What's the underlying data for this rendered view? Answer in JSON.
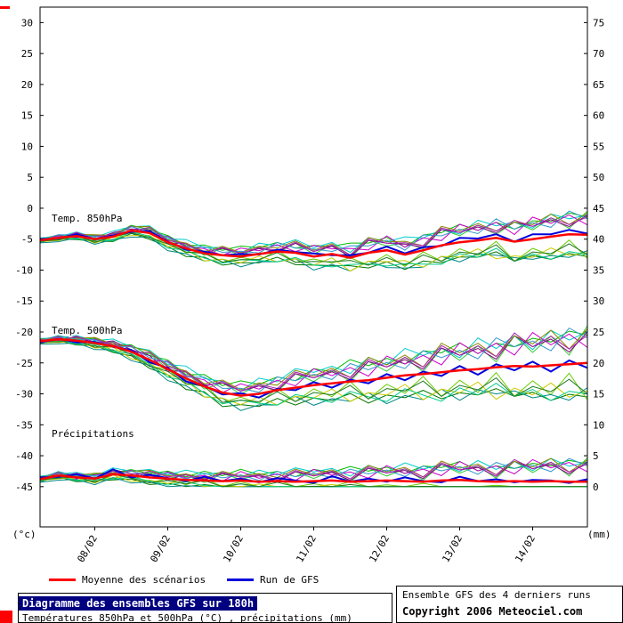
{
  "legend": {
    "mean_label": "Moyenne des scénarios",
    "run_label": "Run de GFS",
    "mean_color": "#ff0000",
    "run_color": "#0000dd"
  },
  "footer": {
    "left_title": "Diagramme des ensembles GFS sur 180h",
    "left_subtitle": "Températures 850hPa et 500hPa (°C) , précipitations (mm)",
    "right_line1": "Ensemble GFS des 4 derniers runs",
    "right_line2": "Copyright 2006 Meteociel.com",
    "title_bg": "#000080"
  },
  "chart_data": {
    "type": "line",
    "title": "Diagramme des ensembles GFS sur 180h",
    "hours_total": 180,
    "step_hours": 6,
    "x_tick_hours": [
      18,
      42,
      66,
      90,
      114,
      138,
      162
    ],
    "x_tick_labels": [
      "08/02",
      "09/02",
      "10/02",
      "11/02",
      "12/02",
      "13/02",
      "14/02"
    ],
    "y_left": {
      "unit": "(°c)",
      "ticks": [
        30,
        25,
        20,
        15,
        10,
        5,
        0,
        -5,
        -10,
        -15,
        -20,
        -25,
        -30,
        -35,
        -40,
        -45
      ]
    },
    "y_right": {
      "unit": "(mm)",
      "ticks": [
        75,
        70,
        65,
        60,
        55,
        50,
        45,
        40,
        35,
        30,
        25,
        20,
        15,
        10,
        5,
        0
      ]
    },
    "grid": false,
    "legend_position": "bottom",
    "mean_color": "#ff0000",
    "run_color": "#0000dd",
    "member_colors": [
      "#00bb00",
      "#007700",
      "#33cc33",
      "#66cc00",
      "#00cccc",
      "#008888",
      "#cc00cc",
      "#880088",
      "#cccc00",
      "#888800",
      "#00cc88",
      "#3399cc",
      "#227722",
      "#aa22aa"
    ],
    "member_patterns": [
      [
        0.3,
        0.5,
        0.1,
        0.6,
        0.2,
        0.7,
        0.4,
        0.8,
        0.3,
        0.9,
        0.5,
        1.0,
        0.6,
        0.8,
        0.4,
        0.9,
        0.6,
        1.1,
        0.7,
        0.9,
        0.5,
        1.0,
        0.8,
        1.1,
        0.6,
        0.9,
        0.7,
        1.0,
        0.8,
        1.1,
        0.9
      ],
      [
        -0.4,
        -0.2,
        -0.6,
        -0.3,
        -0.7,
        -0.4,
        -0.8,
        -0.5,
        -0.9,
        -0.4,
        -1.0,
        -0.6,
        -0.8,
        -0.5,
        -1.0,
        -0.7,
        -0.9,
        -0.6,
        -1.1,
        -0.8,
        -1.0,
        -0.7,
        -1.1,
        -0.9,
        -1.0,
        -0.8,
        -1.1,
        -0.9,
        -1.2,
        -1.0,
        -1.1
      ],
      [
        0.1,
        -0.3,
        0.4,
        -0.2,
        0.5,
        -0.1,
        0.6,
        0.0,
        0.5,
        -0.2,
        0.7,
        0.1,
        0.6,
        -0.1,
        0.8,
        0.2,
        0.7,
        0.0,
        0.9,
        0.3,
        0.8,
        0.1,
        1.0,
        0.4,
        0.9,
        0.2,
        1.1,
        0.5,
        1.0,
        0.3,
        1.2
      ],
      [
        -0.1,
        0.3,
        -0.4,
        0.2,
        -0.5,
        0.1,
        -0.6,
        0.0,
        -0.5,
        0.2,
        -0.7,
        -0.1,
        -0.6,
        0.1,
        -0.8,
        -0.2,
        -0.7,
        0.0,
        -0.9,
        -0.3,
        -0.8,
        -0.1,
        -1.0,
        -0.4,
        -0.9,
        -0.2,
        -1.1,
        -0.5,
        -1.0,
        -0.3,
        -1.2
      ],
      [
        0.5,
        0.2,
        0.7,
        0.3,
        0.8,
        0.5,
        0.9,
        0.4,
        1.0,
        0.6,
        0.8,
        0.3,
        1.0,
        0.5,
        1.1,
        0.7,
        0.9,
        0.4,
        1.1,
        0.6,
        1.2,
        0.8,
        1.0,
        0.5,
        1.2,
        0.7,
        1.1,
        0.6,
        1.2,
        0.8,
        1.0
      ],
      [
        -0.5,
        -0.7,
        -0.3,
        -0.8,
        -0.4,
        -0.9,
        -0.5,
        -1.0,
        -0.6,
        -0.8,
        -0.4,
        -1.0,
        -0.7,
        -0.9,
        -0.5,
        -1.1,
        -0.8,
        -1.0,
        -0.6,
        -1.2,
        -0.9,
        -1.1,
        -0.7,
        -1.2,
        -0.8,
        -1.0,
        -0.9,
        -1.1,
        -1.0,
        -1.2,
        -0.8
      ],
      [
        0.0,
        0.4,
        -0.2,
        0.5,
        0.1,
        0.6,
        -0.1,
        0.7,
        0.2,
        0.5,
        0.0,
        0.8,
        0.3,
        0.6,
        0.1,
        0.9,
        0.4,
        0.7,
        0.2,
        1.0,
        0.5,
        0.8,
        0.3,
        1.1,
        0.6,
        0.9,
        0.4,
        1.2,
        0.7,
        1.0,
        0.5
      ],
      [
        0.2,
        -0.1,
        0.5,
        0.0,
        0.6,
        0.2,
        0.4,
        -0.2,
        0.6,
        0.1,
        0.7,
        0.3,
        0.5,
        0.0,
        0.8,
        0.4,
        0.6,
        0.1,
        0.9,
        0.5,
        0.7,
        0.2,
        1.0,
        0.6,
        0.8,
        0.3,
        1.1,
        0.7,
        0.9,
        0.4,
        1.0
      ],
      [
        -0.2,
        -0.5,
        0.0,
        -0.6,
        -0.1,
        -0.7,
        -0.3,
        -0.5,
        -0.1,
        -0.8,
        -0.4,
        -0.6,
        -0.2,
        -0.9,
        -0.5,
        -0.7,
        -0.3,
        -1.0,
        -0.6,
        -0.8,
        -0.4,
        -1.1,
        -0.7,
        -0.9,
        -0.5,
        -1.2,
        -0.8,
        -1.0,
        -0.6,
        -1.1,
        -0.9
      ],
      [
        0.4,
        0.1,
        0.3,
        0.7,
        0.2,
        0.5,
        0.8,
        0.3,
        0.6,
        0.2,
        0.9,
        0.4,
        0.7,
        0.3,
        1.0,
        0.5,
        0.8,
        0.2,
        1.1,
        0.6,
        0.9,
        0.3,
        1.2,
        0.7,
        1.0,
        0.4,
        1.1,
        0.8,
        1.2,
        0.5,
        1.1
      ],
      [
        -0.3,
        0.0,
        -0.5,
        -0.1,
        -0.6,
        -0.2,
        -0.4,
        -0.7,
        -0.2,
        -0.5,
        -0.8,
        -0.3,
        -0.6,
        -0.9,
        -0.4,
        -0.7,
        -1.0,
        -0.5,
        -0.8,
        -1.1,
        -0.6,
        -0.9,
        -1.2,
        -0.7,
        -1.0,
        -0.6,
        -1.1,
        -0.8,
        -1.2,
        -0.9,
        -1.0
      ],
      [
        0.1,
        0.6,
        0.2,
        0.4,
        0.0,
        0.5,
        0.2,
        0.6,
        0.1,
        0.7,
        0.3,
        0.5,
        0.1,
        0.8,
        0.4,
        0.6,
        0.2,
        0.9,
        0.5,
        0.7,
        0.3,
        1.0,
        0.6,
        0.8,
        0.4,
        1.1,
        0.7,
        0.9,
        0.5,
        1.2,
        0.8
      ],
      [
        -0.1,
        -0.4,
        0.1,
        -0.5,
        0.0,
        -0.3,
        -0.6,
        -0.2,
        -0.4,
        0.0,
        -0.7,
        -0.3,
        -0.5,
        -0.1,
        -0.8,
        -0.4,
        -0.6,
        -0.2,
        -0.9,
        -0.5,
        -0.7,
        -0.3,
        -1.0,
        -0.6,
        -0.8,
        -0.4,
        -1.1,
        -0.7,
        -0.9,
        -0.5,
        -1.0
      ],
      [
        0.3,
        -0.2,
        0.6,
        0.1,
        0.4,
        -0.1,
        0.7,
        0.2,
        0.5,
        0.0,
        0.8,
        0.3,
        0.6,
        0.1,
        0.9,
        0.4,
        0.7,
        0.2,
        1.0,
        0.5,
        0.8,
        0.3,
        1.1,
        0.6,
        0.9,
        0.4,
        1.2,
        0.7,
        1.0,
        0.5,
        0.9
      ]
    ],
    "bands": [
      {
        "label": "Temp. 850hPa",
        "unit": "°C",
        "label_value": -2.2,
        "mean": [
          -5.2,
          -4.8,
          -4.5,
          -5.0,
          -4.6,
          -3.6,
          -4.0,
          -5.5,
          -6.5,
          -7.3,
          -7.6,
          -7.8,
          -7.4,
          -7.0,
          -7.2,
          -7.8,
          -7.4,
          -8.0,
          -7.2,
          -6.8,
          -7.5,
          -6.8,
          -6.0,
          -5.5,
          -5.2,
          -4.8,
          -5.4,
          -5.0,
          -4.6,
          -4.2,
          -4.3
        ],
        "spread": [
          0.8,
          3.2
        ],
        "run_offsets": [
          0.2,
          -0.1,
          0.3,
          0.0,
          0.2,
          -0.2,
          0.3,
          0.1,
          -0.2,
          0.3,
          0.0,
          0.4,
          -0.1,
          0.3,
          0.1,
          0.5,
          -0.2,
          0.4,
          0.0,
          0.6,
          0.2,
          0.5,
          -0.1,
          0.7,
          0.3,
          0.6,
          0.0,
          0.8,
          0.4,
          0.7,
          0.2
        ]
      },
      {
        "label": "Temp. 500hPa",
        "unit": "°C",
        "label_value": -20.3,
        "mean": [
          -21.5,
          -21.2,
          -21.4,
          -21.8,
          -22.3,
          -23.2,
          -24.5,
          -26.0,
          -27.5,
          -28.8,
          -29.8,
          -30.3,
          -30.0,
          -29.4,
          -29.0,
          -28.6,
          -28.3,
          -28.0,
          -27.8,
          -27.4,
          -27.0,
          -26.8,
          -26.5,
          -26.2,
          -26.0,
          -25.7,
          -25.5,
          -25.6,
          -25.4,
          -25.2,
          -25.0
        ],
        "spread": [
          0.9,
          5.0
        ],
        "run_offsets": [
          -0.2,
          0.1,
          -0.3,
          0.2,
          -0.1,
          0.3,
          -0.4,
          0.2,
          -0.5,
          0.1,
          -0.3,
          0.4,
          -0.6,
          0.2,
          -0.4,
          0.5,
          -0.7,
          0.3,
          -0.5,
          0.6,
          -0.8,
          0.4,
          -0.6,
          0.7,
          -0.9,
          0.5,
          -0.7,
          0.8,
          -1.0,
          0.6,
          -0.8
        ]
      },
      {
        "label": "Précipitations",
        "unit": "mm",
        "axis": "right",
        "clamp_min": 0,
        "label_value": -37.0,
        "mean": [
          1.2,
          1.8,
          1.5,
          1.3,
          2.0,
          1.8,
          1.5,
          1.3,
          1.1,
          1.0,
          0.9,
          1.0,
          0.8,
          0.9,
          0.8,
          0.9,
          1.0,
          0.8,
          0.9,
          1.0,
          0.9,
          0.8,
          1.0,
          1.1,
          0.9,
          0.8,
          0.9,
          0.8,
          0.9,
          0.8,
          0.8
        ],
        "spread": [
          1.0,
          3.2
        ],
        "run_offsets": [
          0.3,
          -0.2,
          0.5,
          0.0,
          0.8,
          -0.3,
          0.4,
          0.1,
          -0.2,
          0.6,
          0.0,
          0.3,
          -0.1,
          0.5,
          0.2,
          -0.3,
          0.7,
          0.0,
          0.4,
          -0.2,
          0.6,
          0.1,
          -0.3,
          0.5,
          0.0,
          0.4,
          -0.2,
          0.3,
          0.1,
          -0.2,
          0.4
        ]
      }
    ]
  }
}
